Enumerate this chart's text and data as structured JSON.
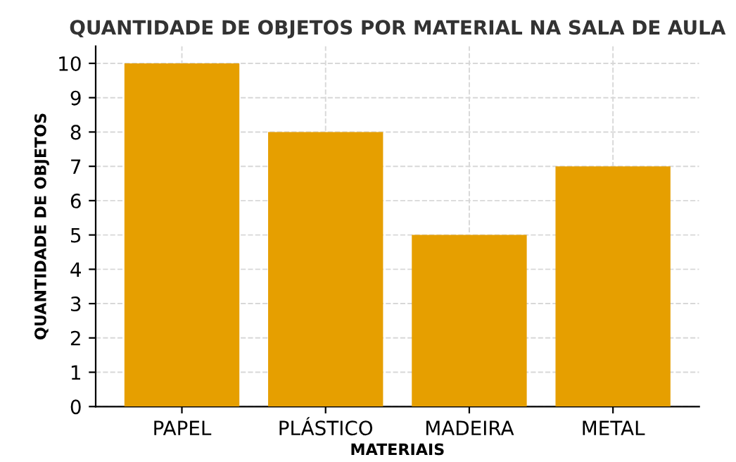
{
  "chart_data": {
    "type": "bar",
    "title": "QUANTIDADE DE OBJETOS POR MATERIAL NA SALA DE AULA",
    "xlabel": "MATERIAIS",
    "ylabel": "QUANTIDADE DE OBJETOS",
    "categories": [
      "PAPEL",
      "PLÁSTICO",
      "MADEIRA",
      "METAL"
    ],
    "values": [
      10,
      8,
      5,
      7
    ],
    "color": "#e69f00",
    "ylim": [
      0,
      10.5
    ],
    "yticks": [
      0,
      1,
      2,
      3,
      4,
      5,
      6,
      7,
      8,
      9,
      10
    ],
    "grid": true
  }
}
